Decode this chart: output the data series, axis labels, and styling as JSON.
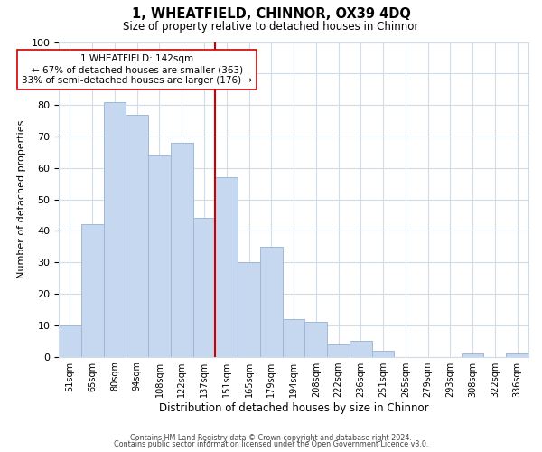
{
  "title": "1, WHEATFIELD, CHINNOR, OX39 4DQ",
  "subtitle": "Size of property relative to detached houses in Chinnor",
  "xlabel": "Distribution of detached houses by size in Chinnor",
  "ylabel": "Number of detached properties",
  "bar_labels": [
    "51sqm",
    "65sqm",
    "80sqm",
    "94sqm",
    "108sqm",
    "122sqm",
    "137sqm",
    "151sqm",
    "165sqm",
    "179sqm",
    "194sqm",
    "208sqm",
    "222sqm",
    "236sqm",
    "251sqm",
    "265sqm",
    "279sqm",
    "293sqm",
    "308sqm",
    "322sqm",
    "336sqm"
  ],
  "bar_values": [
    10,
    42,
    81,
    77,
    64,
    68,
    44,
    57,
    30,
    35,
    12,
    11,
    4,
    5,
    2,
    0,
    0,
    0,
    1,
    0,
    1
  ],
  "bar_color": "#c5d8f0",
  "bar_edge_color": "#a0b8d8",
  "vline_x_index": 6.5,
  "vline_color": "#cc0000",
  "annotation_line1": "1 WHEATFIELD: 142sqm",
  "annotation_line2": "← 67% of detached houses are smaller (363)",
  "annotation_line3": "33% of semi-detached houses are larger (176) →",
  "annotation_box_facecolor": "#ffffff",
  "annotation_box_edgecolor": "#cc0000",
  "ylim": [
    0,
    100
  ],
  "yticks": [
    0,
    10,
    20,
    30,
    40,
    50,
    60,
    70,
    80,
    90,
    100
  ],
  "footer_line1": "Contains HM Land Registry data © Crown copyright and database right 2024.",
  "footer_line2": "Contains public sector information licensed under the Open Government Licence v3.0.",
  "background_color": "#ffffff",
  "grid_color": "#d0dcea"
}
